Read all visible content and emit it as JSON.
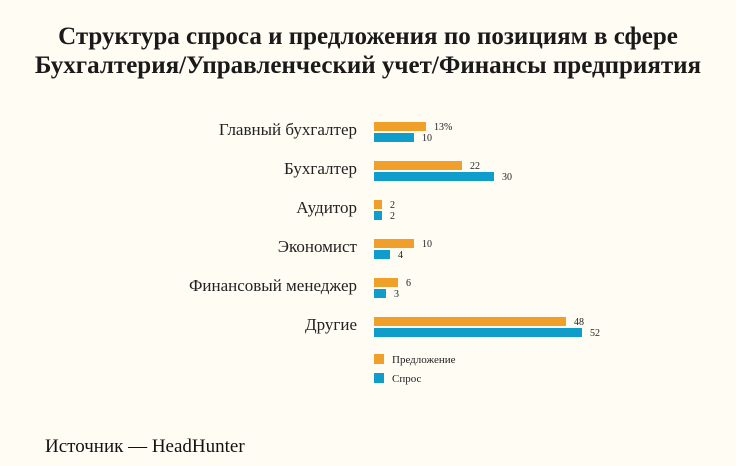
{
  "title_line1": "Структура спроса и предложения по позициям в сфере",
  "title_line2": "Бухгалтерия/Управленческий учет/Финансы предприятия",
  "source": "Источник — HeadHunter",
  "colors": {
    "supply": "#f0a02a",
    "demand": "#0f9ecc",
    "background": "#fefcf3"
  },
  "chart_data": {
    "type": "bar",
    "orientation": "horizontal",
    "title": "Структура спроса и предложения по позициям в сфере Бухгалтерия/Управленческий учет/Финансы предприятия",
    "categories": [
      "Главный бухгалтер",
      "Бухгалтер",
      "Аудитор",
      "Экономист",
      "Финансовый менеджер",
      "Другие"
    ],
    "series": [
      {
        "name": "Предложение",
        "values": [
          13,
          22,
          2,
          10,
          6,
          48
        ],
        "labels": [
          "13%",
          "22",
          "2",
          "10",
          "6",
          "48"
        ]
      },
      {
        "name": "Спрос",
        "values": [
          10,
          30,
          2,
          4,
          3,
          52
        ],
        "labels": [
          "10",
          "30",
          "2",
          "4",
          "3",
          "52"
        ]
      }
    ],
    "xlim": [
      0,
      52
    ],
    "grid": false,
    "legend_position": "bottom"
  }
}
